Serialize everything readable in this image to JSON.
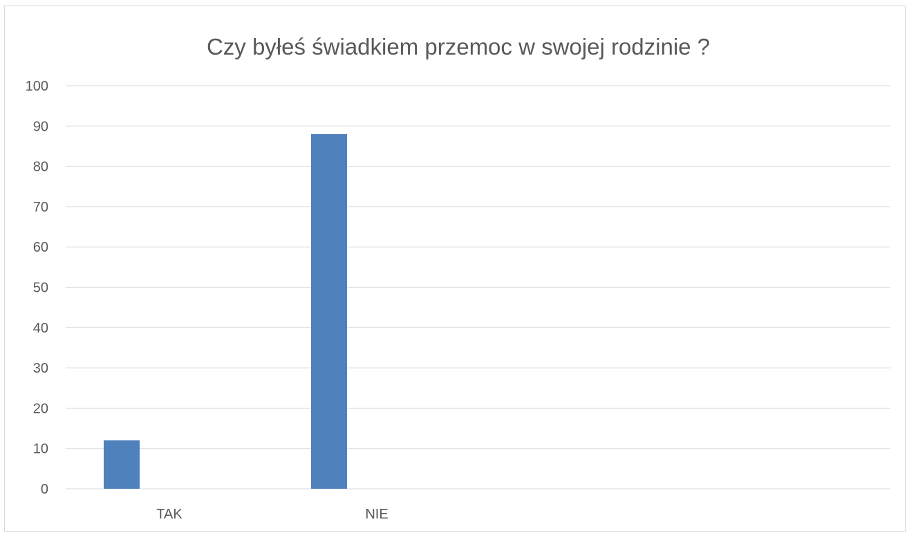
{
  "chart_data": {
    "type": "bar",
    "title": "Czy byłeś świadkiem przemoc w swojej rodzinie ?",
    "categories": [
      "TAK",
      "NIE"
    ],
    "series": [
      {
        "values": [
          12,
          88
        ],
        "color": "#4f81bd"
      }
    ],
    "y_ticks": [
      "0",
      "10",
      "20",
      "30",
      "40",
      "50",
      "60",
      "70",
      "80",
      "90",
      "100"
    ],
    "ylim": [
      0,
      100
    ],
    "grid": true,
    "legend": "none"
  }
}
